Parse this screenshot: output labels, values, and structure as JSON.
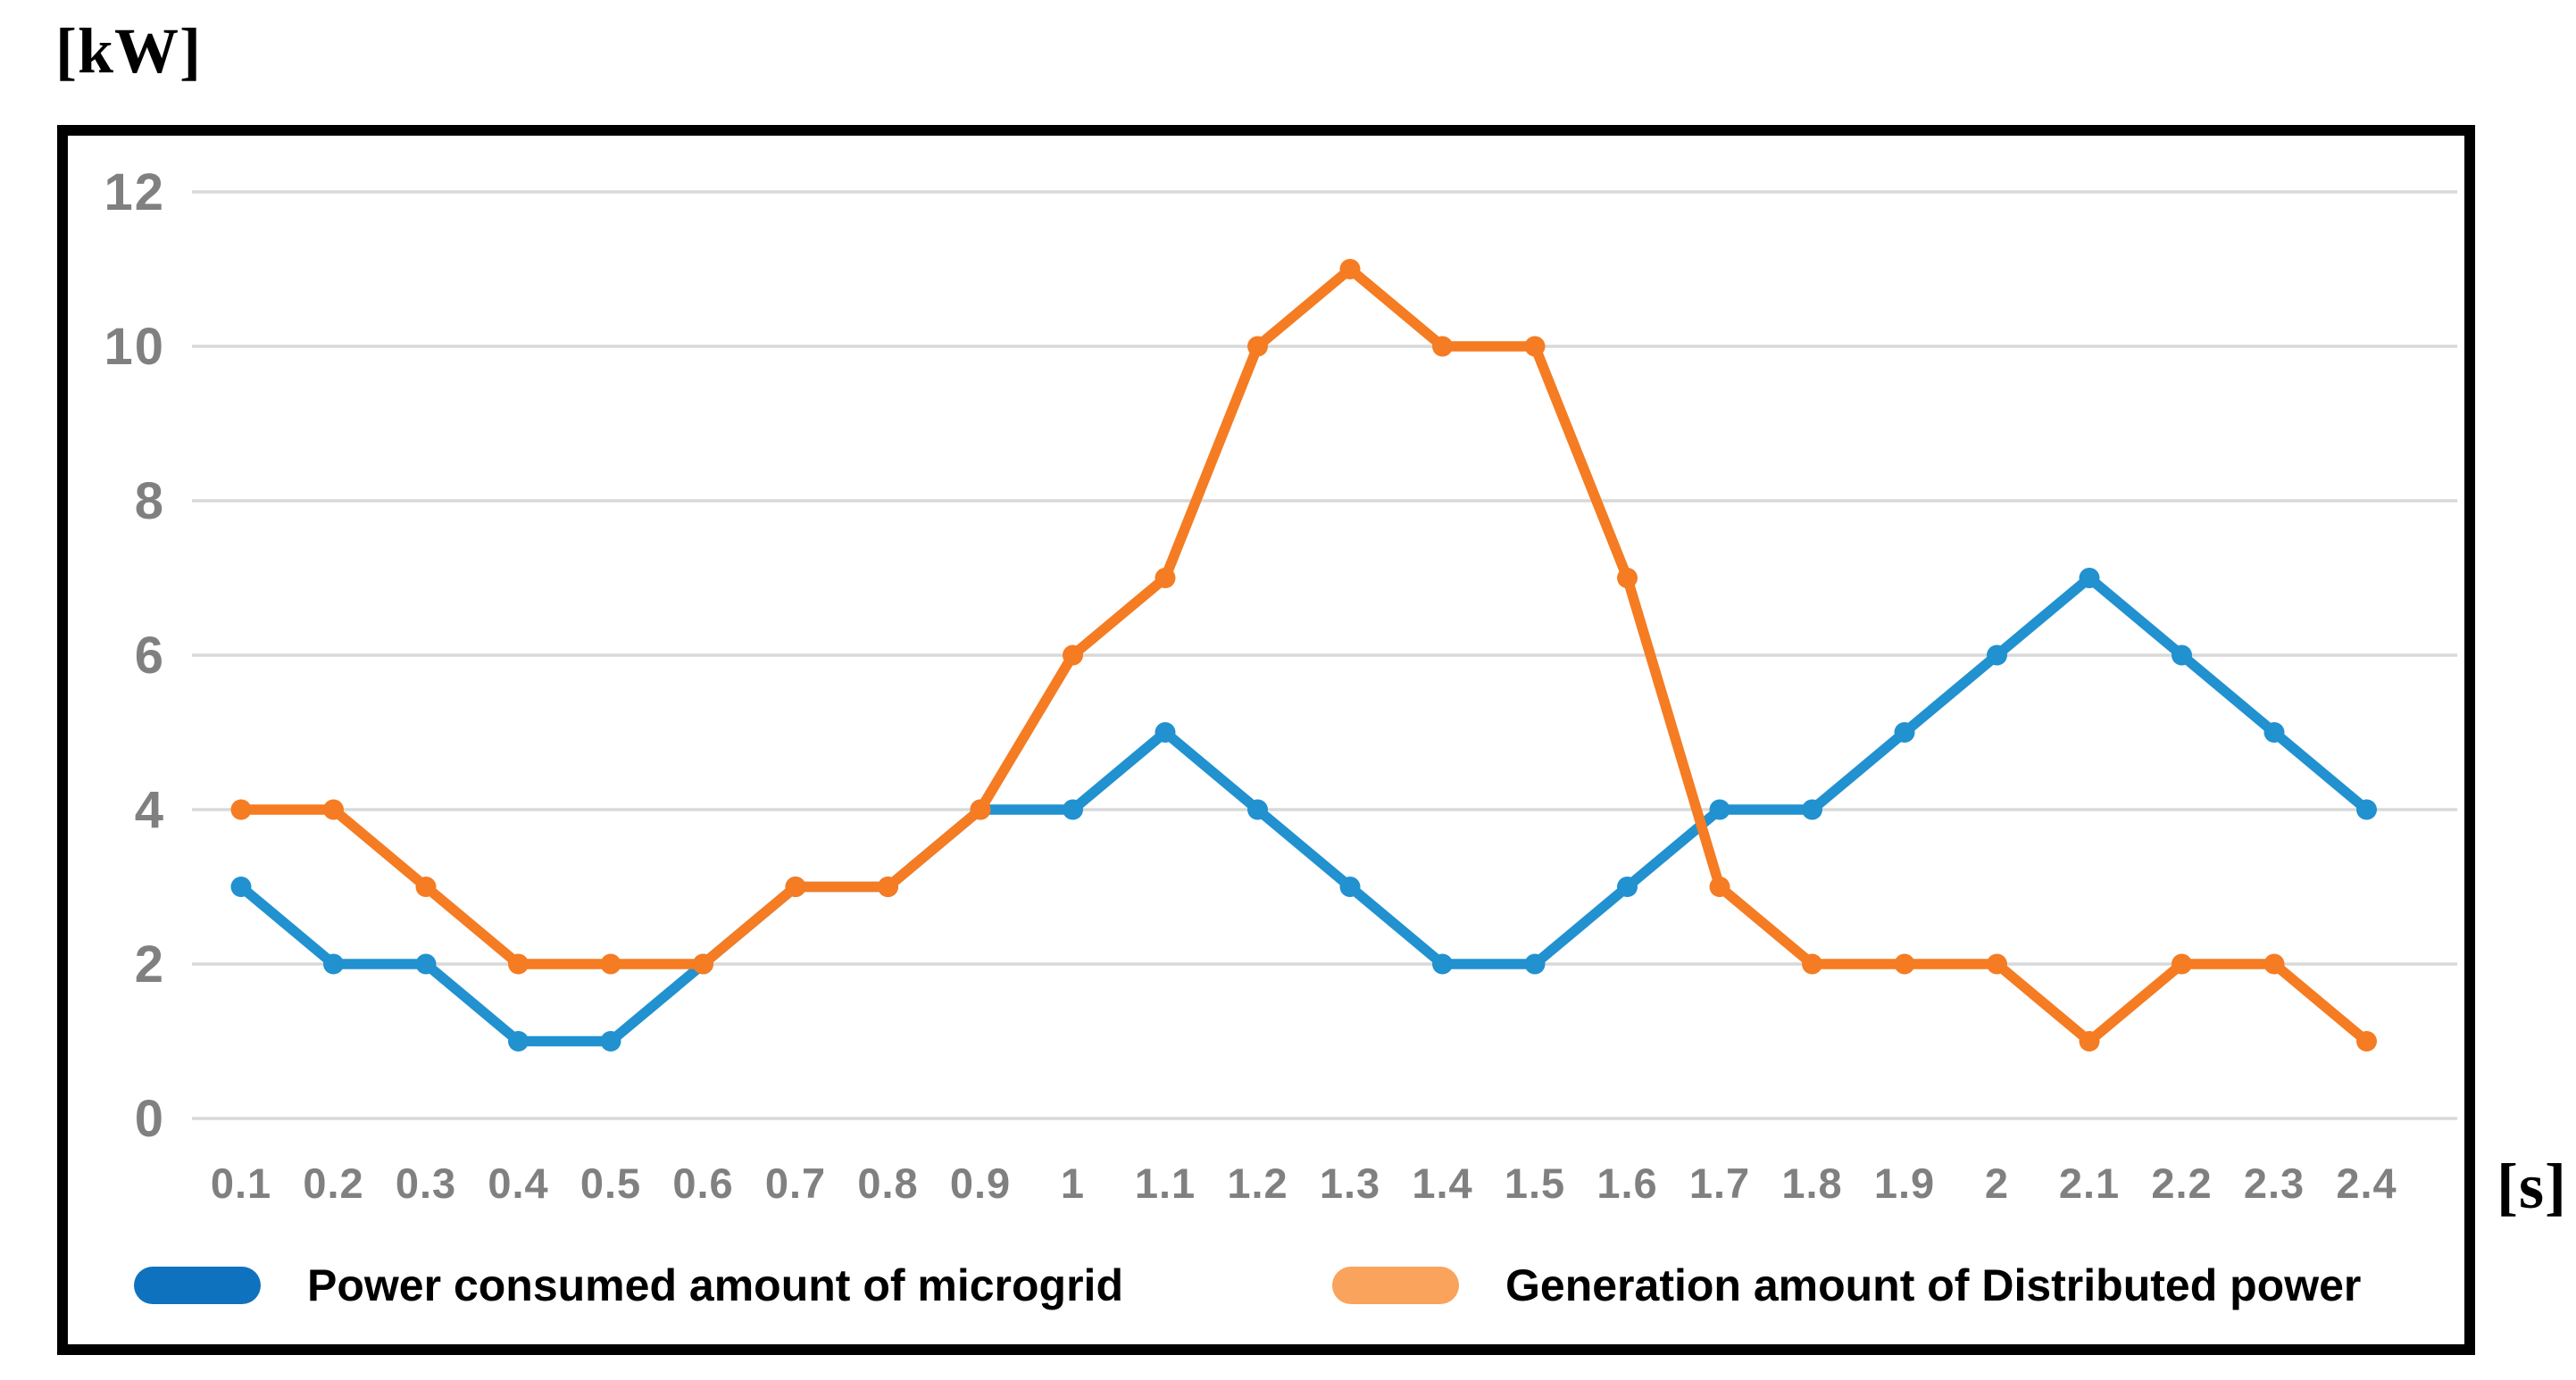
{
  "units": {
    "y_unit": "[kW]",
    "x_unit": "[s]"
  },
  "legend": {
    "items": [
      {
        "label": "Power consumed amount of microgrid",
        "swatch_color": "#0F72BE"
      },
      {
        "label": "Generation amount of Distributed power",
        "swatch_color": "#F9A35D"
      }
    ]
  },
  "colors": {
    "grid": "#D9D9D9",
    "tick_text": "#808080",
    "border": "#000000",
    "series_blue": "#2191D0",
    "series_orange": "#F57C22"
  },
  "chart_data": {
    "type": "line",
    "x": [
      0.1,
      0.2,
      0.3,
      0.4,
      0.5,
      0.6,
      0.7,
      0.8,
      0.9,
      1.0,
      1.1,
      1.2,
      1.3,
      1.4,
      1.5,
      1.6,
      1.7,
      1.8,
      1.9,
      2.0,
      2.1,
      2.2,
      2.3,
      2.4
    ],
    "x_labels": [
      "0.1",
      "0.2",
      "0.3",
      "0.4",
      "0.5",
      "0.6",
      "0.7",
      "0.8",
      "0.9",
      "1",
      "1.1",
      "1.2",
      "1.3",
      "1.4",
      "1.5",
      "1.6",
      "1.7",
      "1.8",
      "1.9",
      "2",
      "2.1",
      "2.2",
      "2.3",
      "2.4"
    ],
    "yticks": [
      0,
      2,
      4,
      6,
      8,
      10,
      12
    ],
    "ylim": [
      0,
      12
    ],
    "xlabel": "[s]",
    "ylabel": "[kW]",
    "grid": true,
    "legend_position": "bottom",
    "series": [
      {
        "name": "Power consumed amount of microgrid",
        "color": "#2191D0",
        "values": [
          3,
          2,
          2,
          1,
          1,
          2,
          3,
          3,
          4,
          4,
          5,
          4,
          3,
          2,
          2,
          3,
          4,
          4,
          5,
          6,
          7,
          6,
          5,
          4
        ]
      },
      {
        "name": "Generation amount of Distributed power",
        "color": "#F57C22",
        "values": [
          4,
          4,
          3,
          2,
          2,
          2,
          3,
          3,
          4,
          6,
          7,
          10,
          11,
          10,
          10,
          7,
          3,
          2,
          2,
          2,
          1,
          2,
          2,
          1
        ]
      }
    ]
  }
}
